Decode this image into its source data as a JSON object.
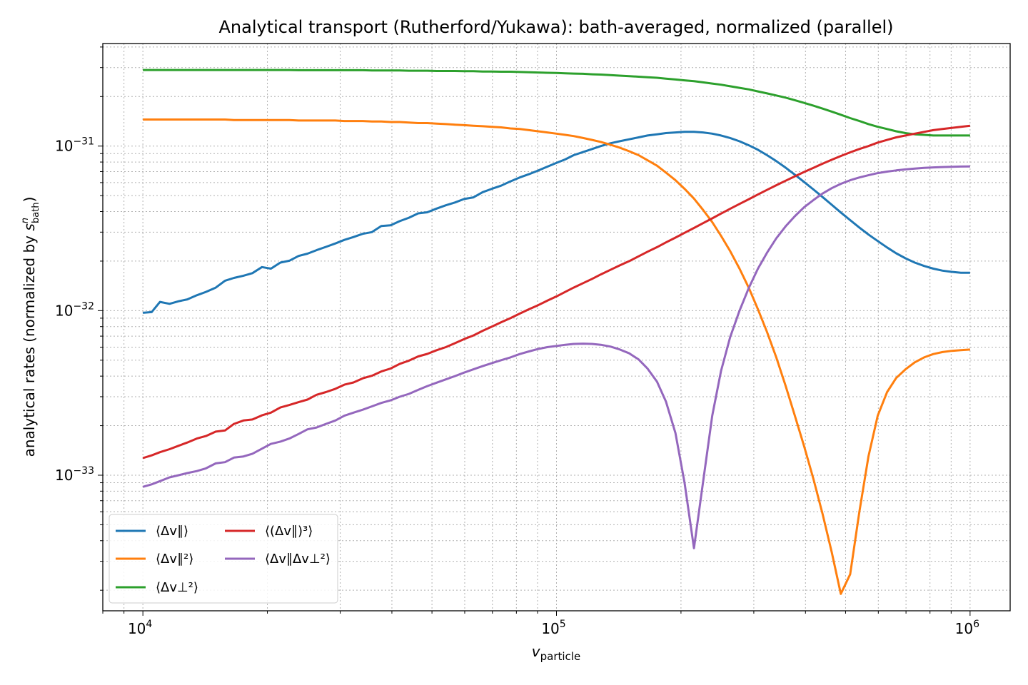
{
  "chart_data": {
    "type": "line",
    "title": "Analytical transport (Rutherford/Yukawa): bath-averaged, normalized (parallel)",
    "xlabel": "v_particle",
    "ylabel": "analytical rates (normalized by s^n_bath)",
    "xscale": "log",
    "yscale": "log",
    "xlim": [
      8000,
      1250000
    ],
    "ylim": [
      1.5e-34,
      4.2e-31
    ],
    "x_ticks": [
      {
        "value": 10000,
        "base": "10",
        "exp": "4"
      },
      {
        "value": 100000,
        "base": "10",
        "exp": "5"
      },
      {
        "value": 1000000,
        "base": "10",
        "exp": "6"
      }
    ],
    "y_ticks": [
      {
        "value": 1e-33,
        "base": "10",
        "exp": "−33"
      },
      {
        "value": 1e-32,
        "base": "10",
        "exp": "−32"
      },
      {
        "value": 1e-31,
        "base": "10",
        "exp": "−31"
      }
    ],
    "grid": true,
    "legend_position": "lower-left",
    "x": [
      10000,
      10500,
      11000,
      11600,
      12200,
      12800,
      13500,
      14200,
      15000,
      15800,
      16600,
      17500,
      18400,
      19400,
      20400,
      21500,
      22600,
      23800,
      25000,
      26300,
      27700,
      29200,
      30700,
      32300,
      34000,
      35800,
      37700,
      39700,
      41800,
      44000,
      46300,
      48700,
      51300,
      54000,
      56800,
      59800,
      63000,
      66300,
      69800,
      73500,
      77400,
      81500,
      85800,
      90300,
      95000,
      100000,
      105000,
      110000,
      116000,
      122000,
      128000,
      135000,
      142000,
      150000,
      158000,
      166000,
      175000,
      184000,
      194000,
      204000,
      215000,
      226000,
      238000,
      250000,
      263000,
      277000,
      292000,
      307000,
      323000,
      340000,
      358000,
      377000,
      397000,
      418000,
      440000,
      463000,
      487000,
      513000,
      540000,
      568000,
      598000,
      630000,
      663000,
      698000,
      735000,
      774000,
      815000,
      858000,
      903000,
      950000,
      1000000
    ],
    "series": [
      {
        "name": "⟨Δv∥⟩",
        "color": "#1f77b4",
        "values": [
          9.7e-33,
          9.8e-33,
          1.13e-32,
          1.1e-32,
          1.14e-32,
          1.17e-32,
          1.24e-32,
          1.3e-32,
          1.38e-32,
          1.52e-32,
          1.58e-32,
          1.63e-32,
          1.69e-32,
          1.84e-32,
          1.8e-32,
          1.96e-32,
          2.01e-32,
          2.15e-32,
          2.22e-32,
          2.33e-32,
          2.44e-32,
          2.56e-32,
          2.69e-32,
          2.8e-32,
          2.93e-32,
          3e-32,
          3.27e-32,
          3.3e-32,
          3.5e-32,
          3.67e-32,
          3.9e-32,
          3.96e-32,
          4.17e-32,
          4.37e-32,
          4.54e-32,
          4.77e-32,
          4.88e-32,
          5.25e-32,
          5.5e-32,
          5.75e-32,
          6.1e-32,
          6.45e-32,
          6.75e-32,
          7.1e-32,
          7.5e-32,
          7.9e-32,
          8.3e-32,
          8.8e-32,
          9.2e-32,
          9.6e-32,
          1e-31,
          1.04e-31,
          1.07e-31,
          1.1e-31,
          1.13e-31,
          1.16e-31,
          1.18e-31,
          1.2e-31,
          1.21e-31,
          1.22e-31,
          1.22e-31,
          1.21e-31,
          1.19e-31,
          1.16e-31,
          1.12e-31,
          1.07e-31,
          1.01e-31,
          9.5e-32,
          8.8e-32,
          8.1e-32,
          7.4e-32,
          6.7e-32,
          6.05e-32,
          5.45e-32,
          4.9e-32,
          4.4e-32,
          3.95e-32,
          3.55e-32,
          3.2e-32,
          2.9e-32,
          2.65e-32,
          2.42e-32,
          2.23e-32,
          2.08e-32,
          1.96e-32,
          1.87e-32,
          1.8e-32,
          1.75e-32,
          1.72e-32,
          1.7e-32,
          1.7e-32
        ]
      },
      {
        "name": "⟨Δv∥²⟩",
        "color": "#ff7f0e",
        "values": [
          1.45e-31,
          1.45e-31,
          1.45e-31,
          1.45e-31,
          1.45e-31,
          1.45e-31,
          1.45e-31,
          1.45e-31,
          1.45e-31,
          1.45e-31,
          1.44e-31,
          1.44e-31,
          1.44e-31,
          1.44e-31,
          1.44e-31,
          1.44e-31,
          1.44e-31,
          1.43e-31,
          1.43e-31,
          1.43e-31,
          1.43e-31,
          1.43e-31,
          1.42e-31,
          1.42e-31,
          1.42e-31,
          1.41e-31,
          1.41e-31,
          1.4e-31,
          1.4e-31,
          1.39e-31,
          1.38e-31,
          1.38e-31,
          1.37e-31,
          1.36e-31,
          1.35e-31,
          1.34e-31,
          1.33e-31,
          1.32e-31,
          1.31e-31,
          1.3e-31,
          1.28e-31,
          1.27e-31,
          1.25e-31,
          1.23e-31,
          1.21e-31,
          1.19e-31,
          1.17e-31,
          1.15e-31,
          1.12e-31,
          1.09e-31,
          1.06e-31,
          1.02e-31,
          9.8e-32,
          9.3e-32,
          8.8e-32,
          8.2e-32,
          7.6e-32,
          6.9e-32,
          6.2e-32,
          5.5e-32,
          4.8e-32,
          4.1e-32,
          3.45e-32,
          2.85e-32,
          2.3e-32,
          1.8e-32,
          1.37e-32,
          1.02e-32,
          7.4e-33,
          5.2e-33,
          3.5e-33,
          2.3e-33,
          1.5e-33,
          9.5e-34,
          5.8e-34,
          3.4e-34,
          1.9e-34,
          2.5e-34,
          6e-34,
          1.3e-33,
          2.3e-33,
          3.2e-33,
          3.9e-33,
          4.4e-33,
          4.85e-33,
          5.2e-33,
          5.45e-33,
          5.6e-33,
          5.7e-33,
          5.75e-33,
          5.8e-33
        ]
      },
      {
        "name": "⟨Δv⊥²⟩",
        "color": "#2ca02c",
        "values": [
          2.9e-31,
          2.9e-31,
          2.9e-31,
          2.9e-31,
          2.9e-31,
          2.9e-31,
          2.9e-31,
          2.9e-31,
          2.9e-31,
          2.9e-31,
          2.9e-31,
          2.9e-31,
          2.9e-31,
          2.9e-31,
          2.9e-31,
          2.9e-31,
          2.9e-31,
          2.89e-31,
          2.89e-31,
          2.89e-31,
          2.89e-31,
          2.89e-31,
          2.89e-31,
          2.89e-31,
          2.89e-31,
          2.88e-31,
          2.88e-31,
          2.88e-31,
          2.88e-31,
          2.87e-31,
          2.87e-31,
          2.87e-31,
          2.86e-31,
          2.86e-31,
          2.86e-31,
          2.85e-31,
          2.85e-31,
          2.84e-31,
          2.84e-31,
          2.83e-31,
          2.83e-31,
          2.82e-31,
          2.81e-31,
          2.8e-31,
          2.79e-31,
          2.78e-31,
          2.77e-31,
          2.76e-31,
          2.75e-31,
          2.73e-31,
          2.72e-31,
          2.7e-31,
          2.68e-31,
          2.66e-31,
          2.64e-31,
          2.62e-31,
          2.6e-31,
          2.57e-31,
          2.54e-31,
          2.51e-31,
          2.48e-31,
          2.44e-31,
          2.4e-31,
          2.36e-31,
          2.31e-31,
          2.26e-31,
          2.21e-31,
          2.15e-31,
          2.09e-31,
          2.03e-31,
          1.97e-31,
          1.9e-31,
          1.83e-31,
          1.76e-31,
          1.69e-31,
          1.62e-31,
          1.55e-31,
          1.48e-31,
          1.42e-31,
          1.36e-31,
          1.31e-31,
          1.27e-31,
          1.23e-31,
          1.2e-31,
          1.18e-31,
          1.17e-31,
          1.16e-31,
          1.16e-31,
          1.16e-31,
          1.16e-31,
          1.16e-31
        ]
      },
      {
        "name": "⟨(Δv∥)³⟩",
        "color": "#d62728",
        "values": [
          1.27e-33,
          1.32e-33,
          1.38e-33,
          1.44e-33,
          1.51e-33,
          1.58e-33,
          1.67e-33,
          1.73e-33,
          1.84e-33,
          1.87e-33,
          2.05e-33,
          2.15e-33,
          2.18e-33,
          2.31e-33,
          2.4e-33,
          2.58e-33,
          2.67e-33,
          2.78e-33,
          2.88e-33,
          3.08e-33,
          3.2e-33,
          3.35e-33,
          3.55e-33,
          3.66e-33,
          3.88e-33,
          4.02e-33,
          4.27e-33,
          4.45e-33,
          4.75e-33,
          4.97e-33,
          5.27e-33,
          5.46e-33,
          5.75e-33,
          6e-33,
          6.34e-33,
          6.72e-33,
          7.07e-33,
          7.54e-33,
          8e-33,
          8.5e-33,
          9e-33,
          9.6e-33,
          1.02e-32,
          1.08e-32,
          1.15e-32,
          1.22e-32,
          1.3e-32,
          1.38e-32,
          1.47e-32,
          1.56e-32,
          1.66e-32,
          1.77e-32,
          1.88e-32,
          2e-32,
          2.14e-32,
          2.28e-32,
          2.43e-32,
          2.6e-32,
          2.78e-32,
          2.97e-32,
          3.18e-32,
          3.4e-32,
          3.64e-32,
          3.89e-32,
          4.16e-32,
          4.45e-32,
          4.76e-32,
          5.08e-32,
          5.42e-32,
          5.78e-32,
          6.16e-32,
          6.55e-32,
          6.96e-32,
          7.38e-32,
          7.82e-32,
          8.26e-32,
          8.71e-32,
          9.16e-32,
          9.6e-32,
          1e-31,
          1.05e-31,
          1.09e-31,
          1.13e-31,
          1.16e-31,
          1.19e-31,
          1.22e-31,
          1.25e-31,
          1.27e-31,
          1.29e-31,
          1.31e-31,
          1.33e-31
        ]
      },
      {
        "name": "⟨Δv∥Δv⊥²⟩",
        "color": "#9467bd",
        "values": [
          8.5e-34,
          8.8e-34,
          9.2e-34,
          9.7e-34,
          1e-33,
          1.03e-33,
          1.06e-33,
          1.1e-33,
          1.18e-33,
          1.2e-33,
          1.28e-33,
          1.3e-33,
          1.35e-33,
          1.45e-33,
          1.55e-33,
          1.6e-33,
          1.67e-33,
          1.78e-33,
          1.9e-33,
          1.95e-33,
          2.05e-33,
          2.15e-33,
          2.3e-33,
          2.4e-33,
          2.5e-33,
          2.62e-33,
          2.75e-33,
          2.85e-33,
          3e-33,
          3.12e-33,
          3.3e-33,
          3.48e-33,
          3.65e-33,
          3.82e-33,
          4e-33,
          4.2e-33,
          4.4e-33,
          4.6e-33,
          4.8e-33,
          5e-33,
          5.2e-33,
          5.45e-33,
          5.65e-33,
          5.85e-33,
          6e-33,
          6.1e-33,
          6.2e-33,
          6.28e-33,
          6.3e-33,
          6.28e-33,
          6.2e-33,
          6.05e-33,
          5.82e-33,
          5.5e-33,
          5.05e-33,
          4.45e-33,
          3.7e-33,
          2.8e-33,
          1.8e-33,
          9e-34,
          3.6e-34,
          9e-34,
          2.3e-33,
          4.3e-33,
          6.9e-33,
          1e-32,
          1.38e-32,
          1.8e-32,
          2.25e-32,
          2.75e-32,
          3.25e-32,
          3.75e-32,
          4.25e-32,
          4.7e-32,
          5.15e-32,
          5.55e-32,
          5.9e-32,
          6.2e-32,
          6.45e-32,
          6.65e-32,
          6.85e-32,
          7e-32,
          7.12e-32,
          7.22e-32,
          7.3e-32,
          7.37e-32,
          7.42e-32,
          7.46e-32,
          7.49e-32,
          7.51e-32,
          7.53e-32
        ]
      }
    ],
    "legend_columns": [
      [
        0,
        1,
        2
      ],
      [
        3,
        4
      ]
    ]
  }
}
